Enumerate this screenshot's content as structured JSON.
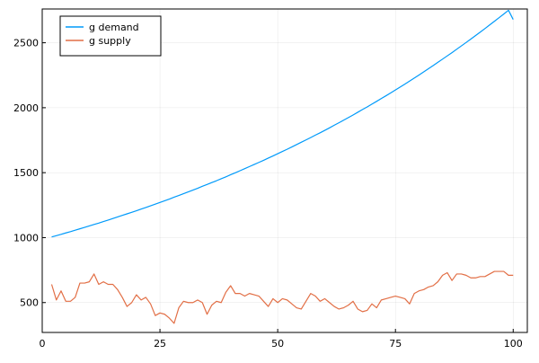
{
  "chart_data": {
    "type": "line",
    "title": "",
    "xlabel": "",
    "ylabel": "",
    "xlim": [
      0,
      103
    ],
    "ylim": [
      270,
      2760
    ],
    "x_ticks": [
      0,
      25,
      50,
      75,
      100
    ],
    "y_ticks": [
      500,
      1000,
      1500,
      2000,
      2500
    ],
    "grid": true,
    "legend_position": "top-left",
    "x": [
      2,
      3,
      4,
      5,
      6,
      7,
      8,
      9,
      10,
      11,
      12,
      13,
      14,
      15,
      16,
      17,
      18,
      19,
      20,
      21,
      22,
      23,
      24,
      25,
      26,
      27,
      28,
      29,
      30,
      31,
      32,
      33,
      34,
      35,
      36,
      37,
      38,
      39,
      40,
      41,
      42,
      43,
      44,
      45,
      46,
      47,
      48,
      49,
      50,
      51,
      52,
      53,
      54,
      55,
      56,
      57,
      58,
      59,
      60,
      61,
      62,
      63,
      64,
      65,
      66,
      67,
      68,
      69,
      70,
      71,
      72,
      73,
      74,
      75,
      76,
      77,
      78,
      79,
      80,
      81,
      82,
      83,
      84,
      85,
      86,
      87,
      88,
      89,
      90,
      91,
      92,
      93,
      94,
      95,
      96,
      97,
      98,
      99,
      100
    ],
    "series": [
      {
        "name": "g demand",
        "color": "#009AFA",
        "values": [
          1005,
          1015,
          1025,
          1036,
          1046,
          1057,
          1068,
          1079,
          1090,
          1101,
          1112,
          1124,
          1135,
          1147,
          1159,
          1171,
          1183,
          1195,
          1207,
          1220,
          1232,
          1245,
          1258,
          1271,
          1284,
          1297,
          1311,
          1324,
          1338,
          1352,
          1366,
          1380,
          1395,
          1409,
          1424,
          1438,
          1453,
          1468,
          1484,
          1499,
          1515,
          1531,
          1547,
          1563,
          1579,
          1595,
          1612,
          1629,
          1646,
          1663,
          1680,
          1698,
          1716,
          1734,
          1752,
          1770,
          1789,
          1807,
          1826,
          1845,
          1865,
          1884,
          1904,
          1924,
          1944,
          1965,
          1986,
          2006,
          2028,
          2049,
          2071,
          2092,
          2114,
          2137,
          2159,
          2182,
          2205,
          2228,
          2252,
          2276,
          2300,
          2324,
          2349,
          2374,
          2399,
          2424,
          2450,
          2476,
          2502,
          2528,
          2555,
          2582,
          2609,
          2637,
          2665,
          2693,
          2721,
          2750,
          2679
        ]
      },
      {
        "name": "g supply",
        "color": "#E26F46",
        "values": [
          640,
          520,
          590,
          510,
          510,
          540,
          650,
          650,
          660,
          720,
          640,
          660,
          640,
          640,
          600,
          540,
          470,
          500,
          560,
          520,
          540,
          490,
          400,
          420,
          410,
          380,
          340,
          460,
          510,
          500,
          500,
          520,
          500,
          410,
          480,
          510,
          500,
          580,
          630,
          570,
          570,
          550,
          570,
          560,
          550,
          510,
          470,
          530,
          500,
          530,
          520,
          490,
          460,
          450,
          510,
          570,
          550,
          510,
          530,
          500,
          470,
          450,
          460,
          480,
          510,
          450,
          430,
          440,
          490,
          460,
          520,
          530,
          540,
          550,
          540,
          530,
          490,
          570,
          590,
          600,
          620,
          630,
          660,
          710,
          730,
          670,
          720,
          720,
          710,
          690,
          690,
          700,
          700,
          720,
          740,
          740,
          740,
          710,
          710
        ]
      }
    ]
  }
}
